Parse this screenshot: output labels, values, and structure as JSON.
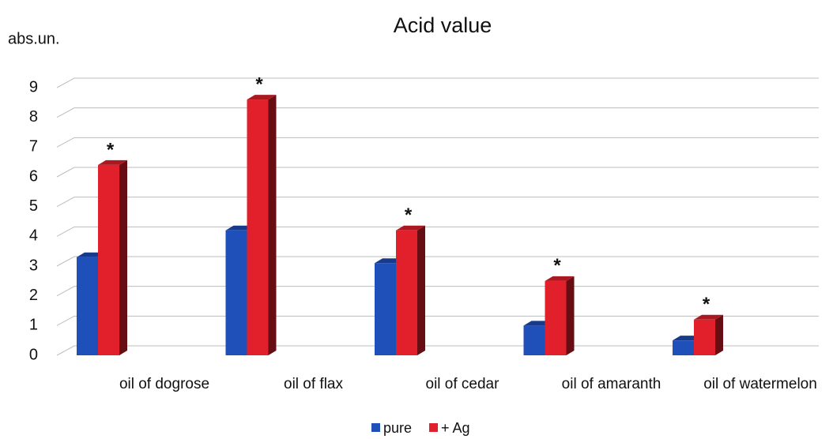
{
  "chart_data": {
    "type": "bar3d",
    "title": "Acid value",
    "y_label": "abs.un.",
    "categories": [
      "oil of dogrose",
      "oil of flax",
      "oil of cedar",
      "oil of amaranth",
      "oil of watermelon"
    ],
    "series": [
      {
        "name": "pure",
        "color": "#1f4fb8",
        "values": [
          3.3,
          4.2,
          3.1,
          1.0,
          0.5
        ]
      },
      {
        "name": "+ Ag",
        "color": "#e2202b",
        "values": [
          6.4,
          8.6,
          4.2,
          2.5,
          1.2
        ],
        "annotations": [
          "*",
          "*",
          "*",
          "*",
          "*"
        ]
      }
    ],
    "ylim": [
      0,
      9
    ],
    "yticks": [
      0,
      1,
      2,
      3,
      4,
      5,
      6,
      7,
      8,
      9
    ],
    "grid": true,
    "legend": "bottom"
  }
}
